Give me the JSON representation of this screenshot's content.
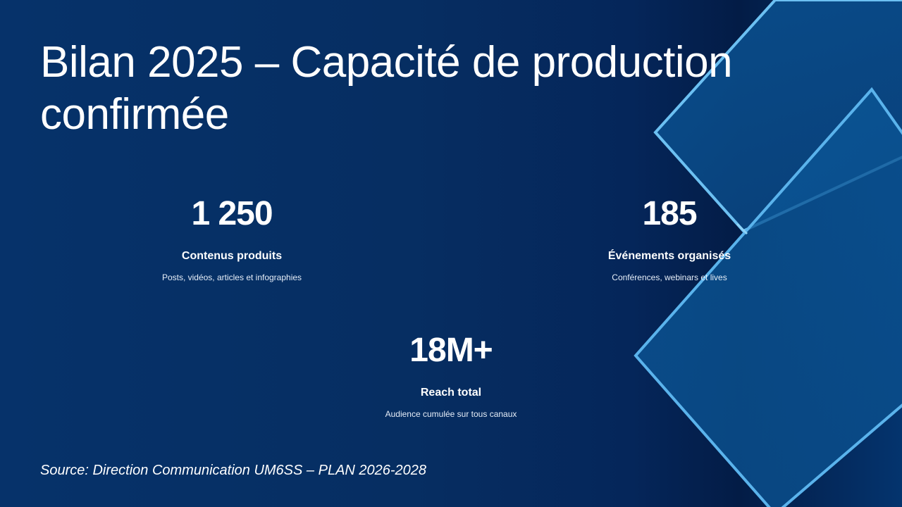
{
  "slide": {
    "title": "Bilan 2025 – Capacité de production confirmée",
    "source": "Source: Direction Communication UM6SS – PLAN 2026-2028"
  },
  "stats": [
    {
      "value": "1 250",
      "label": "Contenus produits",
      "description": "Posts, vidéos, articles et infographies"
    },
    {
      "value": "185",
      "label": "Événements organisés",
      "description": "Conférences, webinars et lives"
    },
    {
      "value": "18M+",
      "label": "Reach total",
      "description": "Audience cumulée sur tous canaux"
    }
  ],
  "colors": {
    "background": "#062e62",
    "accent_outline": "#5fb6ee",
    "diamond_fill": "#0a4c88"
  }
}
